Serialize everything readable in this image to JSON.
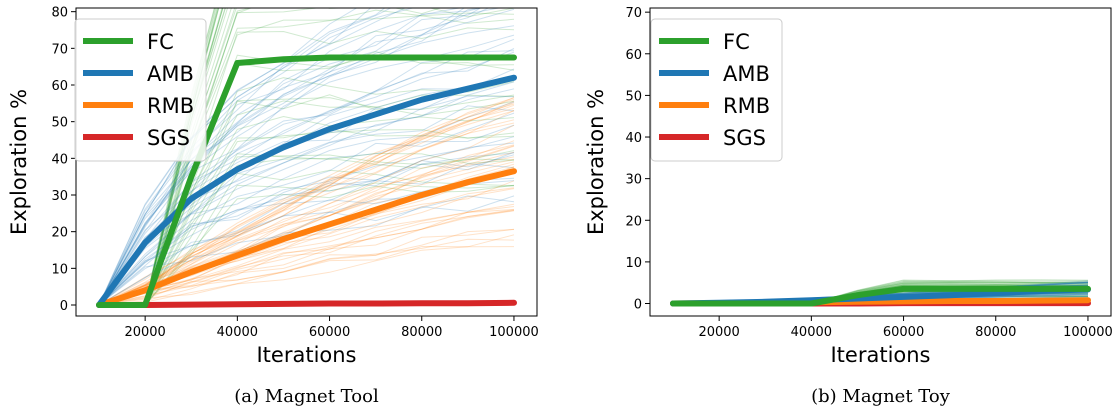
{
  "chart_data": [
    {
      "type": "line",
      "caption": "(a) Magnet Tool",
      "xlabel": "Iterations",
      "ylabel": "Exploration %",
      "xlim": [
        5000,
        105000
      ],
      "ylim": [
        -3,
        81
      ],
      "xticks": [
        20000,
        40000,
        60000,
        80000,
        100000
      ],
      "yticks": [
        0,
        10,
        20,
        30,
        40,
        50,
        60,
        70,
        80
      ],
      "legend_position": "top-left",
      "x": [
        10000,
        20000,
        30000,
        40000,
        50000,
        60000,
        70000,
        80000,
        90000,
        100000
      ],
      "series": [
        {
          "name": "FC",
          "color": "#2ca02c",
          "values": [
            0,
            0,
            35,
            66,
            67,
            67.5,
            67.5,
            67.5,
            67.5,
            67.5
          ]
        },
        {
          "name": "AMB",
          "color": "#1f77b4",
          "values": [
            0,
            17,
            29,
            37,
            43,
            48,
            52,
            56,
            59,
            62
          ]
        },
        {
          "name": "RMB",
          "color": "#ff7f0e",
          "values": [
            0,
            4,
            9,
            13.5,
            18,
            22,
            26,
            30,
            33.5,
            36.5
          ]
        },
        {
          "name": "SGS",
          "color": "#d62728",
          "values": [
            0,
            0,
            0.1,
            0.2,
            0.3,
            0.4,
            0.4,
            0.5,
            0.5,
            0.6
          ]
        }
      ]
    },
    {
      "type": "line",
      "caption": "(b) Magnet Toy",
      "xlabel": "Iterations",
      "ylabel": "Exploration %",
      "xlim": [
        5000,
        105000
      ],
      "ylim": [
        -3,
        71
      ],
      "xticks": [
        20000,
        40000,
        60000,
        80000,
        100000
      ],
      "yticks": [
        0,
        10,
        20,
        30,
        40,
        50,
        60,
        70
      ],
      "legend_position": "top-left",
      "x": [
        10000,
        20000,
        30000,
        40000,
        50000,
        60000,
        70000,
        80000,
        90000,
        100000
      ],
      "series": [
        {
          "name": "FC",
          "color": "#2ca02c",
          "values": [
            0,
            0,
            0,
            0,
            2,
            3.5,
            3.5,
            3.5,
            3.5,
            3.5
          ]
        },
        {
          "name": "AMB",
          "color": "#1f77b4",
          "values": [
            0,
            0.2,
            0.4,
            0.8,
            1.2,
            1.6,
            2,
            2.5,
            3,
            3.4
          ]
        },
        {
          "name": "RMB",
          "color": "#ff7f0e",
          "values": [
            0,
            0.1,
            0.2,
            0.3,
            0.4,
            0.5,
            0.6,
            0.6,
            0.7,
            0.8
          ]
        },
        {
          "name": "SGS",
          "color": "#d62728",
          "values": [
            0,
            0,
            0,
            0,
            0,
            0.1,
            0.1,
            0.1,
            0.1,
            0.1
          ]
        }
      ]
    }
  ]
}
